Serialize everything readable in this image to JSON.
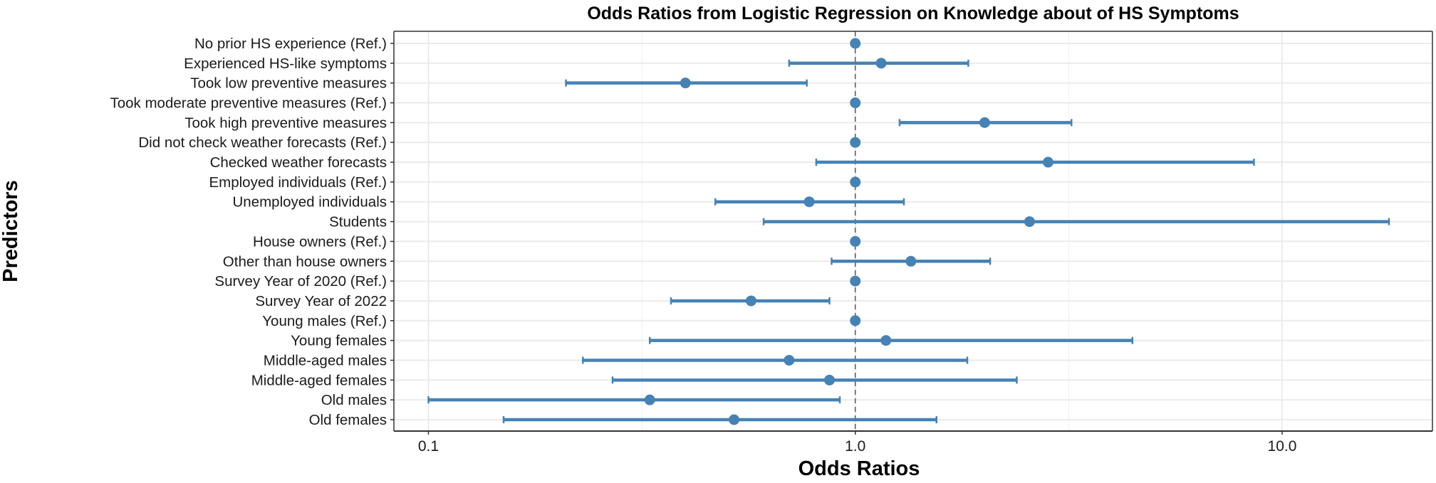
{
  "chart_data": {
    "type": "forest",
    "title": "Odds Ratios from Logistic Regression on Knowledge about of HS Symptoms",
    "xlabel": "Odds Ratios",
    "ylabel": "Predictors",
    "x_scale": "log10",
    "xlim": [
      0.083,
      22.5
    ],
    "x_ticks": [
      0.1,
      1.0,
      10.0
    ],
    "x_tick_labels": [
      "0.1",
      "1.0",
      "10.0"
    ],
    "reference_line": 1.0,
    "grid": true,
    "color": "#4682B4",
    "rows": [
      {
        "label": "No prior HS experience (Ref.)",
        "or": 1.0,
        "lo": null,
        "hi": null
      },
      {
        "label": "Experienced HS-like symptoms",
        "or": 1.15,
        "lo": 0.7,
        "hi": 1.84
      },
      {
        "label": "Took low preventive measures",
        "or": 0.4,
        "lo": 0.21,
        "hi": 0.77
      },
      {
        "label": "Took moderate preventive measures (Ref.)",
        "or": 1.0,
        "lo": null,
        "hi": null
      },
      {
        "label": "Took high preventive measures",
        "or": 2.01,
        "lo": 1.27,
        "hi": 3.21
      },
      {
        "label": "Did not check weather forecasts (Ref.)",
        "or": 1.0,
        "lo": null,
        "hi": null
      },
      {
        "label": "Checked weather forecasts",
        "or": 2.83,
        "lo": 0.81,
        "hi": 8.59
      },
      {
        "label": "Employed individuals (Ref.)",
        "or": 1.0,
        "lo": null,
        "hi": null
      },
      {
        "label": "Unemployed individuals",
        "or": 0.78,
        "lo": 0.47,
        "hi": 1.3
      },
      {
        "label": "Students",
        "or": 2.56,
        "lo": 0.61,
        "hi": 17.8
      },
      {
        "label": "House owners (Ref.)",
        "or": 1.0,
        "lo": null,
        "hi": null
      },
      {
        "label": "Other than house owners",
        "or": 1.35,
        "lo": 0.88,
        "hi": 2.07
      },
      {
        "label": "Survey Year of 2020 (Ref.)",
        "or": 1.0,
        "lo": null,
        "hi": null
      },
      {
        "label": "Survey Year of 2022",
        "or": 0.57,
        "lo": 0.37,
        "hi": 0.87
      },
      {
        "label": "Young males (Ref.)",
        "or": 1.0,
        "lo": null,
        "hi": null
      },
      {
        "label": "Young females",
        "or": 1.18,
        "lo": 0.33,
        "hi": 4.46
      },
      {
        "label": "Middle-aged males",
        "or": 0.7,
        "lo": 0.23,
        "hi": 1.83
      },
      {
        "label": "Middle-aged females",
        "or": 0.87,
        "lo": 0.27,
        "hi": 2.39
      },
      {
        "label": "Old males",
        "or": 0.33,
        "lo": 0.1,
        "hi": 0.92
      },
      {
        "label": "Old females",
        "or": 0.52,
        "lo": 0.15,
        "hi": 1.55
      }
    ]
  }
}
